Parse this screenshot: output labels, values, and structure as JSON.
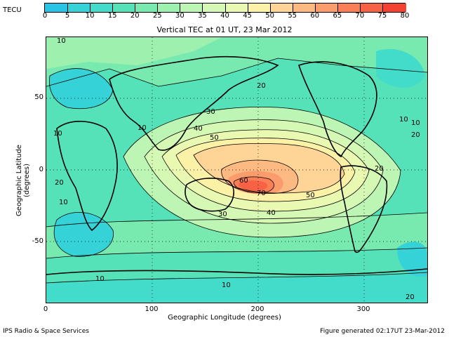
{
  "header": {
    "unit": "TECU",
    "title": "Vertical TEC at 01 UT, 23 Mar 2012"
  },
  "colorbar": {
    "ticks": [
      "0",
      "5",
      "10",
      "15",
      "20",
      "25",
      "30",
      "35",
      "40",
      "45",
      "50",
      "55",
      "60",
      "65",
      "70",
      "75",
      "80"
    ],
    "colors": [
      "#27c4e6",
      "#35d3d8",
      "#43dccb",
      "#55e2b9",
      "#78eab0",
      "#9ef0af",
      "#bdf5b4",
      "#d5f8b4",
      "#eaf9b2",
      "#fbf1a7",
      "#fed597",
      "#fdb982",
      "#fb9c6c",
      "#fa7f56",
      "#f86244",
      "#f34232"
    ]
  },
  "axes": {
    "ylabel": "Geographic Latitude (degrees)",
    "xlabel": "Geographic Longitude (degrees)",
    "yticks": [
      "50",
      "0",
      "-50"
    ],
    "xticks": [
      "0",
      "100",
      "200",
      "300"
    ]
  },
  "contour_labels": [
    "10",
    "20",
    "30",
    "40",
    "50",
    "60",
    "70",
    "50",
    "40",
    "30",
    "20",
    "10",
    "10",
    "20",
    "10",
    "20",
    "10",
    "10",
    "10",
    "20",
    "10"
  ],
  "footer": {
    "left": "IPS Radio & Space Services",
    "right": "Figure generated 02:17UT 23-Mar-2012"
  },
  "colors": {
    "land_outline": "#000000",
    "gridline": "#000000"
  }
}
